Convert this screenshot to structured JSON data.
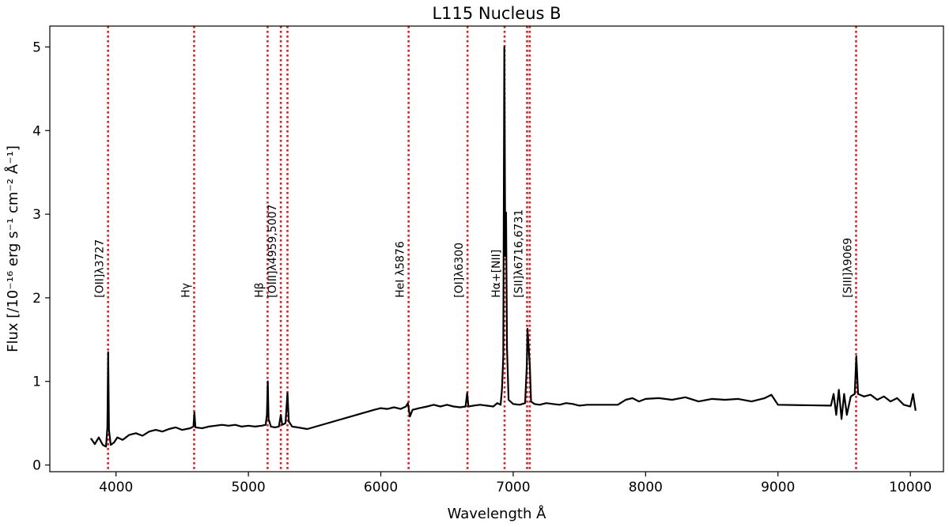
{
  "chart_data": {
    "type": "line",
    "title": "L115 Nucleus B",
    "xlabel": "Wavelength Å",
    "ylabel": "Flux  [/10⁻¹⁶ erg s⁻¹ cm⁻² Å⁻¹]",
    "xlim": [
      3500,
      10250
    ],
    "ylim": [
      -0.08,
      5.25
    ],
    "xticks": [
      4000,
      5000,
      6000,
      7000,
      8000,
      9000,
      10000
    ],
    "yticks": [
      0,
      1,
      2,
      3,
      4,
      5
    ],
    "grid": false,
    "line_color": "#000000",
    "marker_color": "#e8191c",
    "emission_lines": [
      {
        "label": "[OII]λ3727",
        "x": [
          3940
        ]
      },
      {
        "label": "Hγ",
        "x": [
          4590
        ]
      },
      {
        "label": "Hβ",
        "x": [
          5145
        ]
      },
      {
        "label": "[OIII]λ4959,5007",
        "x": [
          5245,
          5295
        ]
      },
      {
        "label": "HeI λ5876",
        "x": [
          6210
        ]
      },
      {
        "label": "[OI]λ6300",
        "x": [
          6655
        ]
      },
      {
        "label": "Hα+[NII]",
        "x": [
          6935
        ]
      },
      {
        "label": "[SII]λ6716,6731",
        "x": [
          7105,
          7125
        ]
      },
      {
        "label": "[SIII]λ9069",
        "x": [
          9590
        ]
      }
    ],
    "series": [
      {
        "points": [
          [
            3810,
            0.32
          ],
          [
            3840,
            0.25
          ],
          [
            3870,
            0.33
          ],
          [
            3900,
            0.24
          ],
          [
            3925,
            0.22
          ],
          [
            3935,
            0.45
          ],
          [
            3941,
            1.35
          ],
          [
            3947,
            0.42
          ],
          [
            3960,
            0.24
          ],
          [
            3985,
            0.27
          ],
          [
            4010,
            0.33
          ],
          [
            4050,
            0.3
          ],
          [
            4100,
            0.36
          ],
          [
            4150,
            0.38
          ],
          [
            4200,
            0.35
          ],
          [
            4250,
            0.4
          ],
          [
            4300,
            0.42
          ],
          [
            4350,
            0.4
          ],
          [
            4400,
            0.43
          ],
          [
            4450,
            0.45
          ],
          [
            4500,
            0.42
          ],
          [
            4560,
            0.44
          ],
          [
            4585,
            0.46
          ],
          [
            4592,
            0.63
          ],
          [
            4600,
            0.45
          ],
          [
            4650,
            0.44
          ],
          [
            4700,
            0.46
          ],
          [
            4750,
            0.47
          ],
          [
            4800,
            0.48
          ],
          [
            4850,
            0.47
          ],
          [
            4900,
            0.48
          ],
          [
            4950,
            0.46
          ],
          [
            5000,
            0.47
          ],
          [
            5050,
            0.46
          ],
          [
            5100,
            0.47
          ],
          [
            5130,
            0.48
          ],
          [
            5140,
            0.6
          ],
          [
            5146,
            1.0
          ],
          [
            5152,
            0.55
          ],
          [
            5170,
            0.46
          ],
          [
            5200,
            0.45
          ],
          [
            5230,
            0.46
          ],
          [
            5245,
            0.6
          ],
          [
            5255,
            0.48
          ],
          [
            5280,
            0.5
          ],
          [
            5295,
            0.86
          ],
          [
            5305,
            0.52
          ],
          [
            5330,
            0.46
          ],
          [
            5370,
            0.45
          ],
          [
            5410,
            0.44
          ],
          [
            5445,
            0.43
          ],
          [
            5950,
            0.66
          ],
          [
            6000,
            0.68
          ],
          [
            6050,
            0.67
          ],
          [
            6100,
            0.69
          ],
          [
            6150,
            0.67
          ],
          [
            6190,
            0.7
          ],
          [
            6205,
            0.74
          ],
          [
            6220,
            0.58
          ],
          [
            6240,
            0.66
          ],
          [
            6290,
            0.68
          ],
          [
            6350,
            0.7
          ],
          [
            6400,
            0.72
          ],
          [
            6450,
            0.7
          ],
          [
            6500,
            0.72
          ],
          [
            6550,
            0.7
          ],
          [
            6600,
            0.69
          ],
          [
            6640,
            0.7
          ],
          [
            6652,
            0.86
          ],
          [
            6662,
            0.7
          ],
          [
            6700,
            0.71
          ],
          [
            6750,
            0.72
          ],
          [
            6800,
            0.71
          ],
          [
            6850,
            0.7
          ],
          [
            6880,
            0.74
          ],
          [
            6905,
            0.72
          ],
          [
            6915,
            0.9
          ],
          [
            6925,
            1.3
          ],
          [
            6933,
            5.0
          ],
          [
            6940,
            2.5
          ],
          [
            6946,
            3.02
          ],
          [
            6953,
            1.4
          ],
          [
            6965,
            0.78
          ],
          [
            7000,
            0.73
          ],
          [
            7050,
            0.72
          ],
          [
            7090,
            0.74
          ],
          [
            7103,
            1.2
          ],
          [
            7108,
            1.63
          ],
          [
            7115,
            1.45
          ],
          [
            7125,
            1.2
          ],
          [
            7135,
            0.76
          ],
          [
            7160,
            0.73
          ],
          [
            7200,
            0.72
          ],
          [
            7250,
            0.74
          ],
          [
            7300,
            0.73
          ],
          [
            7350,
            0.72
          ],
          [
            7400,
            0.74
          ],
          [
            7450,
            0.73
          ],
          [
            7500,
            0.71
          ],
          [
            7560,
            0.72
          ],
          [
            7790,
            0.72
          ],
          [
            7850,
            0.78
          ],
          [
            7900,
            0.8
          ],
          [
            7950,
            0.76
          ],
          [
            8000,
            0.79
          ],
          [
            8100,
            0.8
          ],
          [
            8200,
            0.78
          ],
          [
            8300,
            0.81
          ],
          [
            8400,
            0.76
          ],
          [
            8500,
            0.79
          ],
          [
            8600,
            0.78
          ],
          [
            8700,
            0.79
          ],
          [
            8800,
            0.76
          ],
          [
            8900,
            0.8
          ],
          [
            8950,
            0.84
          ],
          [
            9000,
            0.72
          ],
          [
            9400,
            0.71
          ],
          [
            9420,
            0.85
          ],
          [
            9440,
            0.6
          ],
          [
            9460,
            0.9
          ],
          [
            9480,
            0.55
          ],
          [
            9500,
            0.85
          ],
          [
            9520,
            0.6
          ],
          [
            9550,
            0.82
          ],
          [
            9580,
            0.85
          ],
          [
            9592,
            1.3
          ],
          [
            9605,
            0.85
          ],
          [
            9650,
            0.82
          ],
          [
            9700,
            0.84
          ],
          [
            9750,
            0.78
          ],
          [
            9800,
            0.82
          ],
          [
            9850,
            0.76
          ],
          [
            9900,
            0.8
          ],
          [
            9950,
            0.72
          ],
          [
            10000,
            0.7
          ],
          [
            10020,
            0.85
          ],
          [
            10040,
            0.65
          ]
        ]
      }
    ]
  }
}
